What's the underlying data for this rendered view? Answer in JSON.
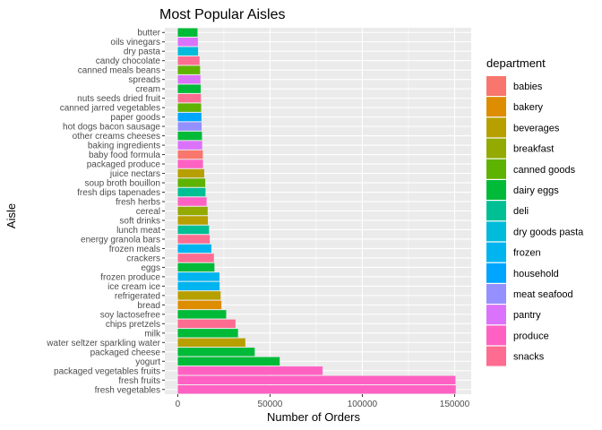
{
  "chart_data": {
    "type": "bar",
    "orientation": "horizontal",
    "title": "Most Popular Aisles",
    "xlabel": "Number of Orders",
    "ylabel": "Aisle",
    "xlim": [
      -7000,
      159000
    ],
    "xticks": [
      0,
      50000,
      100000,
      150000
    ],
    "xtick_labels": [
      "0",
      "50000",
      "100000",
      "150000"
    ],
    "grid": true,
    "legend_title": "department",
    "legend_placement": "right",
    "categories": [
      "fresh vegetables",
      "fresh fruits",
      "packaged vegetables fruits",
      "yogurt",
      "packaged cheese",
      "water seltzer sparkling water",
      "milk",
      "chips pretzels",
      "soy lactosefree",
      "bread",
      "refrigerated",
      "ice cream ice",
      "frozen produce",
      "eggs",
      "crackers",
      "frozen meals",
      "energy granola bars",
      "lunch meat",
      "soft drinks",
      "cereal",
      "fresh herbs",
      "fresh dips tapenades",
      "soup broth bouillon",
      "juice nectars",
      "packaged produce",
      "baby food formula",
      "baking ingredients",
      "other creams cheeses",
      "hot dogs bacon sausage",
      "paper goods",
      "canned jarred vegetables",
      "nuts seeds dried fruit",
      "cream",
      "spreads",
      "canned meals beans",
      "candy chocolate",
      "dry pasta",
      "oils vinegars",
      "butter"
    ],
    "values": [
      150609,
      150473,
      78493,
      55240,
      41699,
      36617,
      32644,
      31269,
      26240,
      23635,
      23228,
      22676,
      22583,
      19875,
      19592,
      18221,
      17340,
      16957,
      16328,
      16200,
      15624,
      15034,
      14906,
      14344,
      13658,
      13590,
      13240,
      13120,
      12920,
      12820,
      12680,
      12580,
      12420,
      12300,
      12100,
      11800,
      11000,
      10900,
      10700
    ],
    "departments": [
      "produce",
      "produce",
      "produce",
      "dairy eggs",
      "dairy eggs",
      "beverages",
      "dairy eggs",
      "snacks",
      "dairy eggs",
      "bakery",
      "beverages",
      "frozen",
      "frozen",
      "dairy eggs",
      "snacks",
      "frozen",
      "snacks",
      "deli",
      "beverages",
      "breakfast",
      "produce",
      "deli",
      "canned goods",
      "beverages",
      "produce",
      "babies",
      "pantry",
      "dairy eggs",
      "meat seafood",
      "household",
      "canned goods",
      "snacks",
      "dairy eggs",
      "pantry",
      "canned goods",
      "snacks",
      "dry goods pasta",
      "pantry",
      "dairy eggs"
    ],
    "legend": [
      {
        "label": "babies",
        "color": "#F8766D"
      },
      {
        "label": "bakery",
        "color": "#DE8C00"
      },
      {
        "label": "beverages",
        "color": "#B79F00"
      },
      {
        "label": "breakfast",
        "color": "#93AA00"
      },
      {
        "label": "canned goods",
        "color": "#5EB300"
      },
      {
        "label": "dairy eggs",
        "color": "#00BA38"
      },
      {
        "label": "deli",
        "color": "#00BF94"
      },
      {
        "label": "dry goods pasta",
        "color": "#00BBDA"
      },
      {
        "label": "frozen",
        "color": "#00B4F0"
      },
      {
        "label": "household",
        "color": "#00A5FF"
      },
      {
        "label": "meat seafood",
        "color": "#9590FF"
      },
      {
        "label": "pantry",
        "color": "#DB72FB"
      },
      {
        "label": "produce",
        "color": "#FF61C3"
      },
      {
        "label": "snacks",
        "color": "#FF6C91"
      }
    ]
  }
}
